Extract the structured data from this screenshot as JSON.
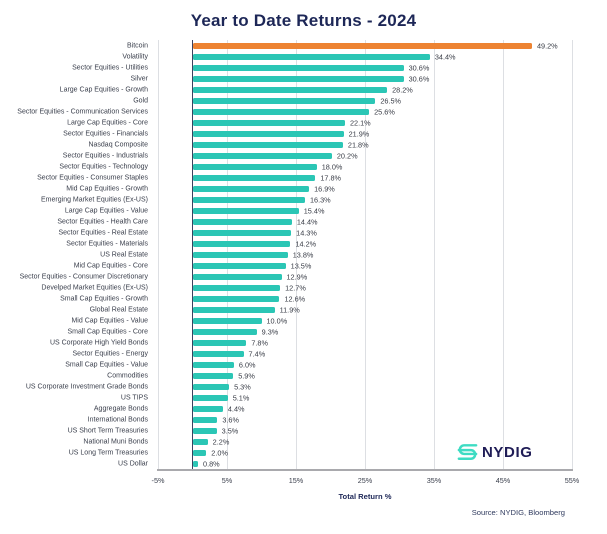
{
  "title": "Year to Date Returns - 2024",
  "chart_data": {
    "type": "bar",
    "orientation": "horizontal",
    "title": "Year to Date Returns - 2024",
    "xlabel": "Total Return %",
    "ylabel": "",
    "xlim": [
      -5,
      55
    ],
    "xticks": [
      -5,
      5,
      15,
      25,
      35,
      45,
      55
    ],
    "xtick_labels": [
      "-5%",
      "5%",
      "15%",
      "25%",
      "35%",
      "45%",
      "55%"
    ],
    "grid": true,
    "legend": false,
    "highlight_index": 0,
    "colors": {
      "default": "#2BC6B5",
      "highlight": "#ED8332"
    },
    "categories": [
      "Bitcoin",
      "Volatility",
      "Sector Equities - Utilities",
      "Silver",
      "Large Cap Equities - Growth",
      "Gold",
      "Sector Equities - Communication Services",
      "Large Cap Equities - Core",
      "Sector Equities - Financials",
      "Nasdaq Composite",
      "Sector Equities - Industrials",
      "Sector Equities - Technology",
      "Sector Equities - Consumer Staples",
      "Mid Cap Equities - Growth",
      "Emerging Market Equities (Ex-US)",
      "Large Cap Equities - Value",
      "Sector Equities - Health Care",
      "Sector Equities - Real Estate",
      "Sector Equities - Materials",
      "US Real Estate",
      "Mid Cap Equities - Core",
      "Sector Equities - Consumer Discretionary",
      "Develped Market Equities (Ex-US)",
      "Small Cap Equities - Growth",
      "Global Real Estate",
      "Mid Cap Equities - Value",
      "Small Cap Equities - Core",
      "US Corporate High Yield Bonds",
      "Sector Equities - Energy",
      "Small Cap Equities - Value",
      "Commodities",
      "US Corporate Investment Grade Bonds",
      "US TIPS",
      "Aggregate Bonds",
      "International Bonds",
      "US Short Term Treasuries",
      "National Muni Bonds",
      "US Long Term Treasuries",
      "US Dollar"
    ],
    "values": [
      49.2,
      34.4,
      30.6,
      30.6,
      28.2,
      26.5,
      25.6,
      22.1,
      21.9,
      21.8,
      20.2,
      18.0,
      17.8,
      16.9,
      16.3,
      15.4,
      14.4,
      14.3,
      14.2,
      13.8,
      13.5,
      12.9,
      12.7,
      12.6,
      11.9,
      10.0,
      9.3,
      7.8,
      7.4,
      6.0,
      5.9,
      5.3,
      5.1,
      4.4,
      3.6,
      3.5,
      2.2,
      2.0,
      0.8
    ],
    "value_labels": [
      "49.2%",
      "34.4%",
      "30.6%",
      "30.6%",
      "28.2%",
      "26.5%",
      "25.6%",
      "22.1%",
      "21.9%",
      "21.8%",
      "20.2%",
      "18.0%",
      "17.8%",
      "16.9%",
      "16.3%",
      "15.4%",
      "14.4%",
      "14.3%",
      "14.2%",
      "13.8%",
      "13.5%",
      "12.9%",
      "12.7%",
      "12.6%",
      "11.9%",
      "10.0%",
      "9.3%",
      "7.8%",
      "7.4%",
      "6.0%",
      "5.9%",
      "5.3%",
      "5.1%",
      "4.4%",
      "3.6%",
      "3.5%",
      "2.2%",
      "2.0%",
      "0.8%"
    ]
  },
  "logo": {
    "text": "NYDIG",
    "icon": "nydig-s-icon",
    "icon_color": "#3EDCC3",
    "text_color": "#1F1C56"
  },
  "source_note": "Source: NYDIG, Bloomberg",
  "colors": {
    "title": "#1D2757",
    "label_text": "#3A3F4C",
    "value_text": "#373B45",
    "gridline": "#DDDFE3",
    "zero_line": "#3A4360",
    "axis_line": "#A9A9AD",
    "background": "#FFFFFF"
  }
}
